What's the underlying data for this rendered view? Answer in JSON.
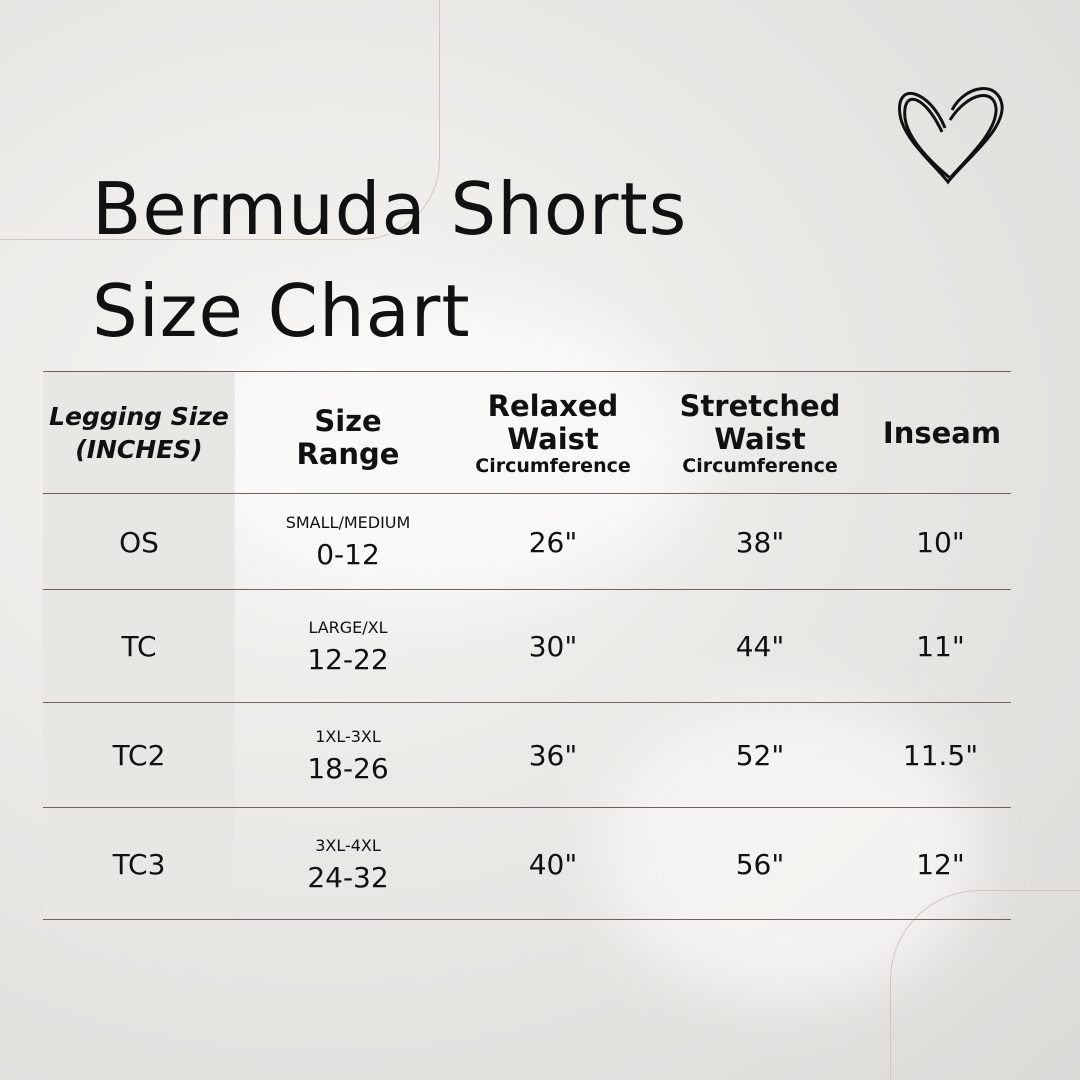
{
  "title_line1": "Bermuda Shorts",
  "title_line2": "Size Chart",
  "decor_icon": "heart-icon",
  "headers": [
    {
      "main": "Legging Size (INCHES)",
      "line1": "Legging Size",
      "line2": "(INCHES)"
    },
    {
      "line1": "Size",
      "line2": "Range"
    },
    {
      "line1": "Relaxed",
      "line2": "Waist",
      "sub": "Circumference"
    },
    {
      "line1": "Stretched",
      "line2": "Waist",
      "sub": "Circumference"
    },
    {
      "line1": "Inseam"
    }
  ],
  "rows": [
    {
      "size": "OS",
      "range_label": "SMALL/MEDIUM",
      "range": "0-12",
      "relaxed": "26\"",
      "stretched": "38\"",
      "inseam": "10\""
    },
    {
      "size": "TC",
      "range_label": "LARGE/XL",
      "range": "12-22",
      "relaxed": "30\"",
      "stretched": "44\"",
      "inseam": "11\""
    },
    {
      "size": "TC2",
      "range_label": "1XL-3XL",
      "range": "18-26",
      "relaxed": "36\"",
      "stretched": "52\"",
      "inseam": "11.5\""
    },
    {
      "size": "TC3",
      "range_label": "3XL-4XL",
      "range": "24-32",
      "relaxed": "40\"",
      "stretched": "56\"",
      "inseam": "12\""
    }
  ]
}
